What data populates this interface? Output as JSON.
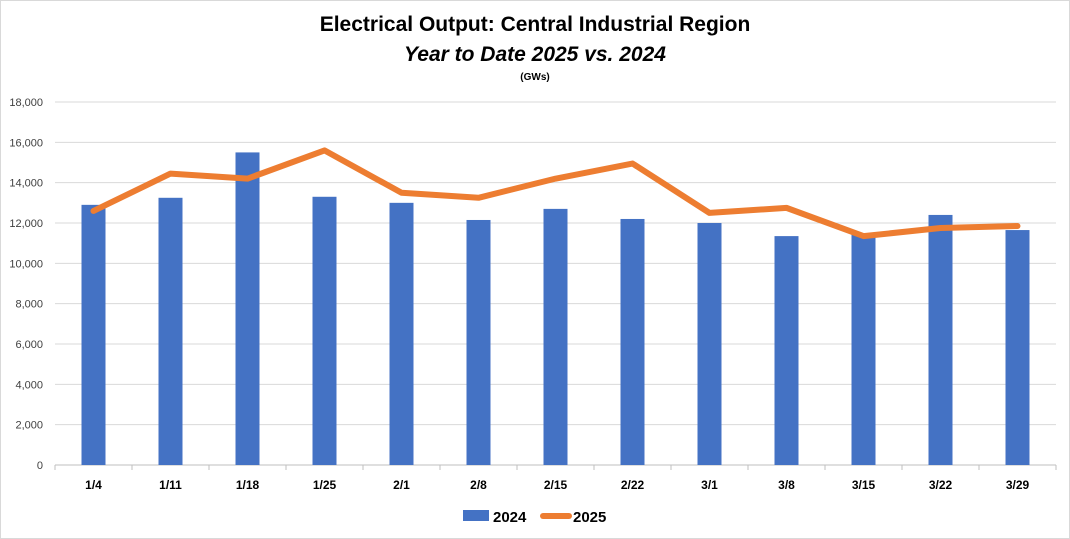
{
  "chart_data": {
    "type": "bar",
    "title": "Electrical Output:  Central Industrial Region",
    "subtitle": "Year to Date 2025 vs. 2024",
    "units": "(GWs)",
    "categories": [
      "1/4",
      "1/11",
      "1/18",
      "1/25",
      "2/1",
      "2/8",
      "2/15",
      "2/22",
      "3/1",
      "3/8",
      "3/15",
      "3/22",
      "3/29"
    ],
    "series": [
      {
        "name": "2024",
        "kind": "bar",
        "color": "#4472C4",
        "values": [
          12900,
          13250,
          15500,
          13300,
          13000,
          12150,
          12700,
          12200,
          12000,
          11350,
          11450,
          12400,
          11650
        ]
      },
      {
        "name": "2025",
        "kind": "line",
        "color": "#ED7D31",
        "values": [
          12600,
          14450,
          14200,
          15600,
          13500,
          13250,
          14200,
          14950,
          12500,
          12750,
          11350,
          11750,
          11850
        ]
      }
    ],
    "ylim": [
      0,
      18000
    ],
    "yticks": [
      "0",
      "2,000",
      "4,000",
      "6,000",
      "8,000",
      "10,000",
      "12,000",
      "14,000",
      "16,000",
      "18,000"
    ],
    "ytick_values": [
      0,
      2000,
      4000,
      6000,
      8000,
      10000,
      12000,
      14000,
      16000,
      18000
    ],
    "grid": true,
    "legend_position": "bottom"
  }
}
